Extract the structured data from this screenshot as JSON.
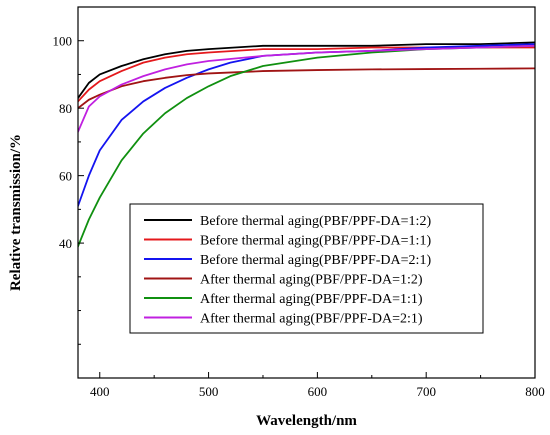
{
  "chart_data": {
    "type": "line",
    "xlabel": "Wavelength/nm",
    "ylabel": "Relative transmission/%",
    "xlim": [
      380,
      800
    ],
    "ylim": [
      0,
      110
    ],
    "xticks": [
      400,
      500,
      600,
      700,
      800
    ],
    "yticks": [
      40,
      60,
      80,
      100
    ],
    "grid": false,
    "legend_position": "lower-center",
    "series": [
      {
        "name": "Before thermal aging(PBF/PPF-DA=1:2)",
        "color": "#000000",
        "x": [
          380,
          390,
          400,
          420,
          440,
          460,
          480,
          500,
          550,
          600,
          650,
          700,
          750,
          800
        ],
        "y": [
          83,
          87.5,
          90,
          92.5,
          94.5,
          96,
          97,
          97.5,
          98.5,
          98.5,
          98.5,
          99,
          99,
          99.5
        ]
      },
      {
        "name": "Before thermal aging(PBF/PPF-DA=1:1)",
        "color": "#e4191c",
        "x": [
          380,
          390,
          400,
          420,
          440,
          460,
          480,
          500,
          550,
          600,
          650,
          700,
          750,
          800
        ],
        "y": [
          82,
          85.5,
          88,
          91,
          93.5,
          95,
          96,
          96.5,
          97.5,
          97.5,
          98,
          98,
          98,
          98
        ]
      },
      {
        "name": "Before thermal aging(PBF/PPF-DA=2:1)",
        "color": "#1414f0",
        "x": [
          380,
          390,
          400,
          420,
          440,
          460,
          480,
          500,
          520,
          550,
          600,
          650,
          700,
          750,
          800
        ],
        "y": [
          51,
          60,
          67.5,
          76.5,
          82,
          86,
          89,
          91.5,
          93.5,
          95.5,
          96.5,
          97,
          98,
          98.5,
          99
        ]
      },
      {
        "name": "After thermal aging(PBF/PPF-DA=1:2)",
        "color": "#a01414",
        "x": [
          380,
          390,
          400,
          420,
          440,
          460,
          480,
          500,
          550,
          600,
          650,
          700,
          750,
          800
        ],
        "y": [
          80,
          82.5,
          84,
          86.5,
          88,
          89,
          89.8,
          90.3,
          91,
          91.3,
          91.5,
          91.6,
          91.7,
          91.8
        ]
      },
      {
        "name": "After thermal aging(PBF/PPF-DA=1:1)",
        "color": "#109010",
        "x": [
          380,
          390,
          400,
          420,
          440,
          460,
          480,
          500,
          520,
          550,
          600,
          650,
          700,
          750,
          800
        ],
        "y": [
          39,
          47,
          53.5,
          64.5,
          72.5,
          78.5,
          83,
          86.5,
          89.5,
          92.5,
          95,
          96.5,
          97.5,
          98,
          98.5
        ]
      },
      {
        "name": "After thermal aging(PBF/PPF-DA=2:1)",
        "color": "#c020e0",
        "x": [
          380,
          390,
          400,
          420,
          440,
          460,
          480,
          500,
          550,
          600,
          650,
          700,
          750,
          800
        ],
        "y": [
          73,
          80.5,
          83.5,
          87,
          89.5,
          91.5,
          93,
          94,
          95.5,
          96.5,
          97,
          97.5,
          98,
          98.5
        ]
      }
    ]
  }
}
